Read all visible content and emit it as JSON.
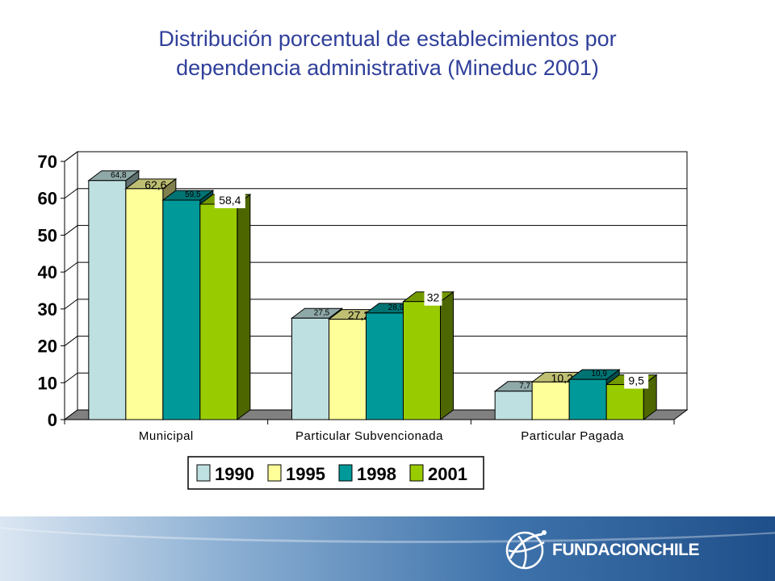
{
  "title_lines": [
    "Distribución porcentual de establecimientos por",
    "dependencia administrativa (Mineduc 2001)"
  ],
  "colors": {
    "title": "#2f3f9a",
    "footer_dark": "#1f4f8a",
    "series": [
      "#bfe0e0",
      "#ffff99",
      "#009999",
      "#99cc00"
    ]
  },
  "footer": {
    "logo_text": "FUNDACIONCHILE",
    "logo_icon": "globe-swoosh-icon"
  },
  "chart_data": {
    "type": "bar",
    "style": "3d-clustered-column",
    "categories": [
      "Municipal",
      "Particular Subvencionada",
      "Particular Pagada"
    ],
    "series": [
      {
        "name": "1990",
        "values": [
          64.8,
          27.5,
          7.7
        ],
        "labels": [
          "64,8",
          "27,5",
          "7,7"
        ]
      },
      {
        "name": "1995",
        "values": [
          62.6,
          27.2,
          10.2
        ],
        "labels": [
          "62,6",
          "27,2",
          "10,2"
        ]
      },
      {
        "name": "1998",
        "values": [
          59.5,
          28.9,
          10.9
        ],
        "labels": [
          "59,5",
          "28,9",
          "10,9"
        ]
      },
      {
        "name": "2001",
        "values": [
          58.4,
          32,
          9.5
        ],
        "labels": [
          "58,4",
          "32",
          "9,5"
        ]
      }
    ],
    "yticks": [
      "0",
      "10",
      "20",
      "30",
      "40",
      "50",
      "60",
      "70"
    ],
    "ylim": [
      0,
      70
    ],
    "grid": true,
    "legend": "bottom",
    "xlabel": "",
    "ylabel": ""
  }
}
